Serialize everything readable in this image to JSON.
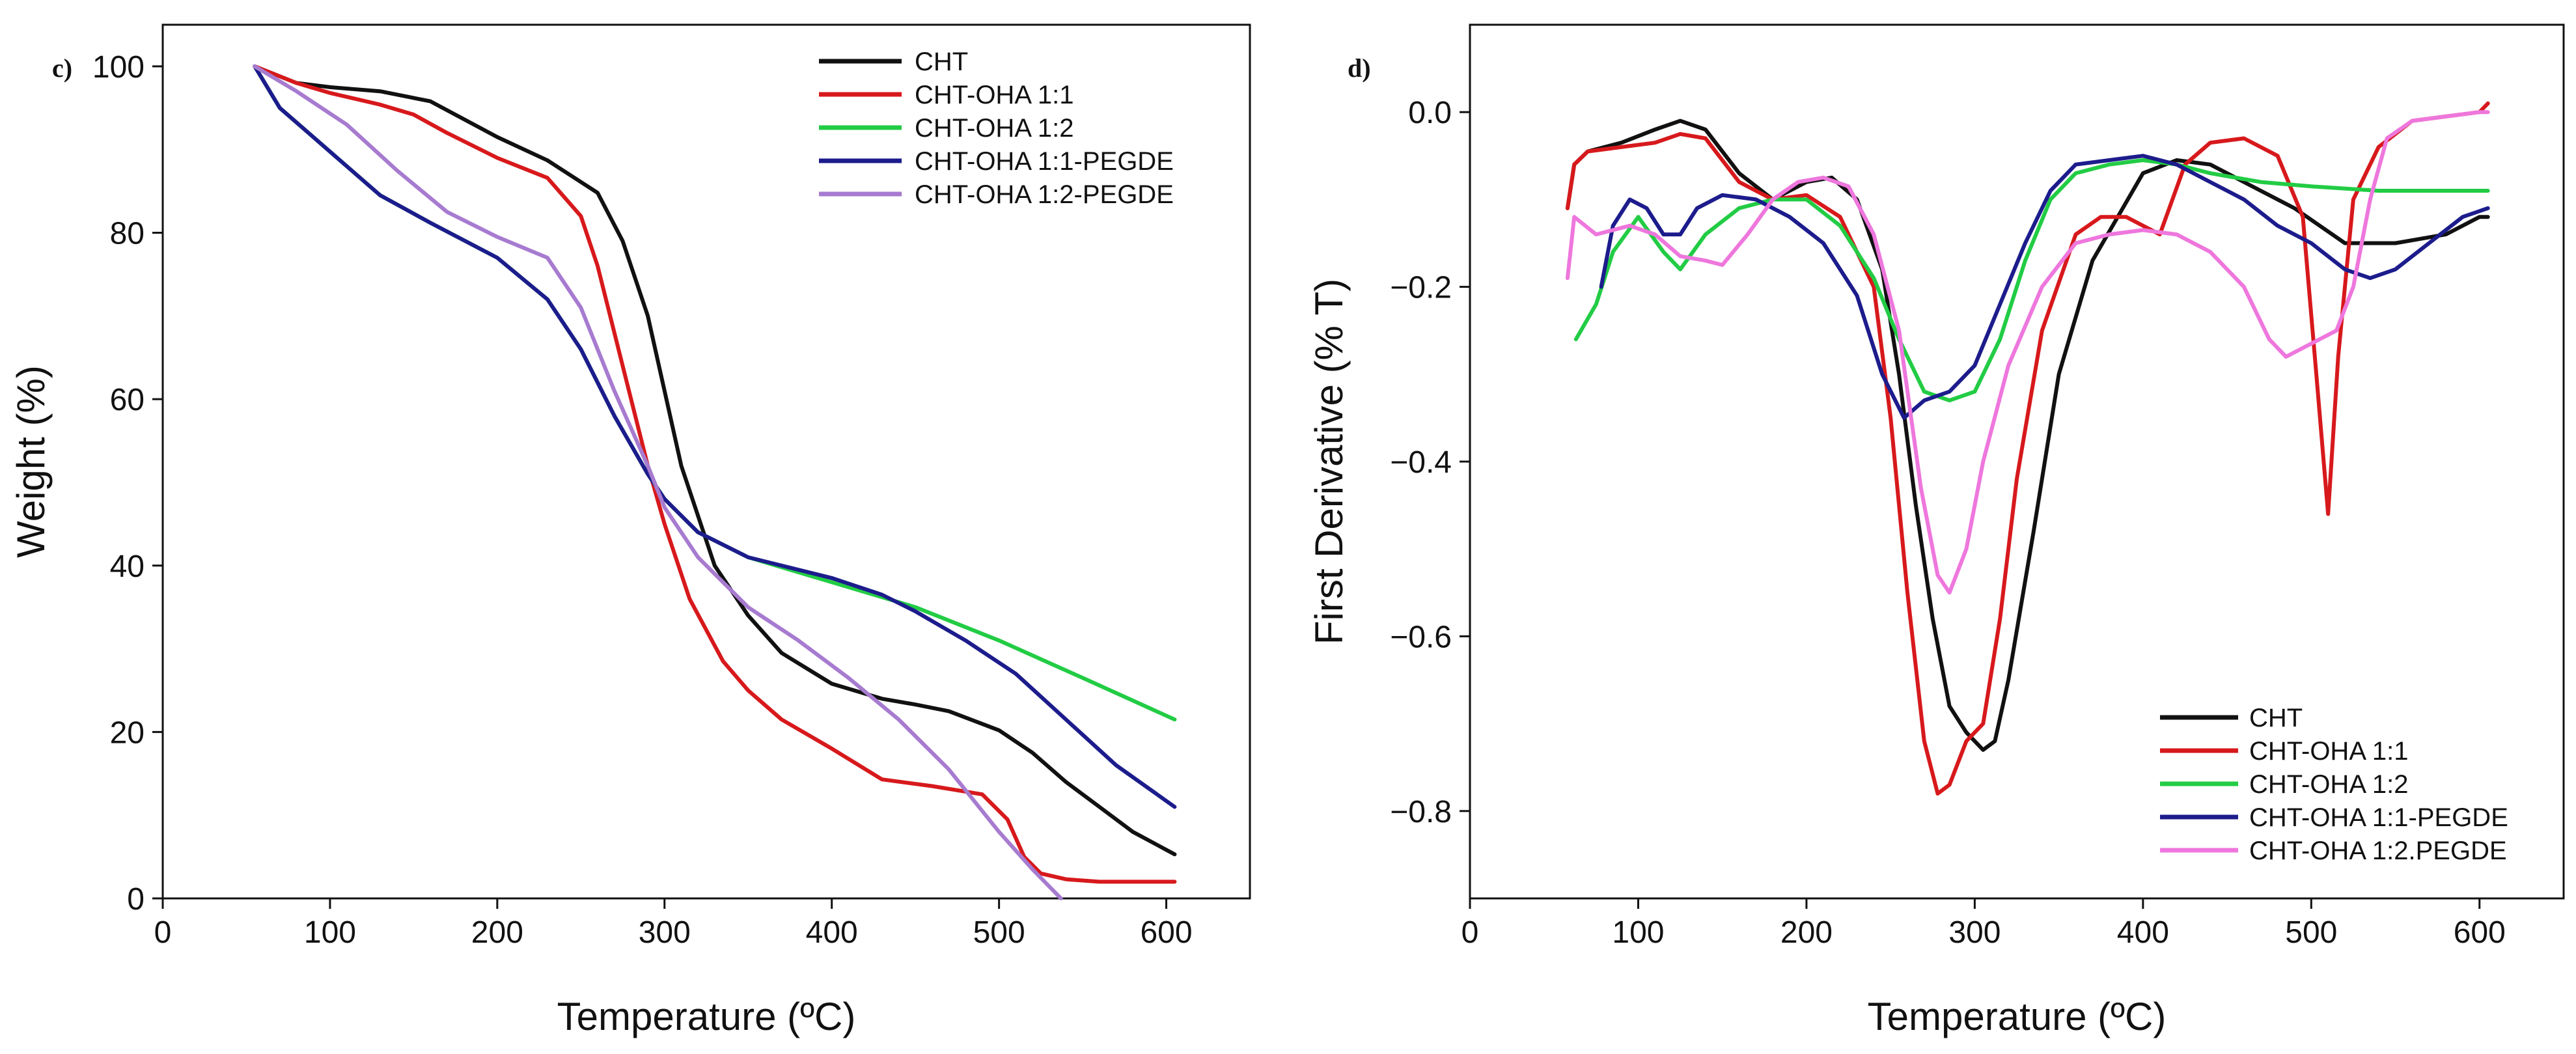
{
  "chart_data": [
    {
      "type": "line",
      "panel_label": "c)",
      "xlabel": "Temperature (ºC)",
      "ylabel": "Weight (%)",
      "xlim": [
        0,
        650
      ],
      "ylim": [
        0,
        105
      ],
      "xticks": [
        0,
        100,
        200,
        300,
        400,
        500,
        600
      ],
      "yticks": [
        0,
        20,
        40,
        60,
        80,
        100
      ],
      "xtick_labels": [
        "0",
        "100",
        "200",
        "300",
        "400",
        "500",
        "600"
      ],
      "ytick_labels": [
        "0",
        "20",
        "40",
        "60",
        "80",
        "100"
      ],
      "legend_position": "top-right",
      "series": [
        {
          "name": "CHT",
          "color": "#111111",
          "x": [
            55,
            80,
            100,
            130,
            160,
            200,
            230,
            260,
            275,
            290,
            310,
            330,
            350,
            370,
            400,
            430,
            450,
            470,
            500,
            520,
            540,
            560,
            580,
            605
          ],
          "y": [
            100,
            98,
            97.5,
            97,
            95.8,
            91.5,
            88.7,
            84.8,
            79,
            70,
            52,
            40,
            34,
            29.5,
            25.8,
            24,
            23.3,
            22.5,
            20.2,
            17.5,
            14,
            11,
            8,
            5.3
          ]
        },
        {
          "name": "CHT-OHA 1:1",
          "color": "#d7191c",
          "x": [
            55,
            80,
            100,
            130,
            150,
            170,
            200,
            230,
            250,
            260,
            275,
            290,
            300,
            315,
            335,
            350,
            370,
            400,
            430,
            460,
            490,
            505,
            515,
            525,
            540,
            560,
            605
          ],
          "y": [
            100,
            98,
            96.8,
            95.4,
            94.2,
            92,
            89,
            86.6,
            82,
            76,
            64,
            52,
            45,
            36,
            28.5,
            25,
            21.5,
            18,
            14.3,
            13.5,
            12.5,
            9.5,
            5,
            3,
            2.3,
            2,
            2
          ]
        },
        {
          "name": "CHT-OHA 1:2",
          "color": "#22cc44",
          "x": [
            55,
            70,
            90,
            110,
            130,
            160,
            200,
            230,
            250,
            270,
            290,
            300,
            320,
            350,
            400,
            430,
            450,
            500,
            550,
            605
          ],
          "y": [
            100,
            95,
            91.5,
            88,
            84.5,
            81.2,
            77,
            72,
            66,
            58,
            51,
            48,
            44,
            41,
            38,
            36.2,
            35,
            31,
            26.5,
            21.5
          ]
        },
        {
          "name": "CHT-OHA 1:1-PEGDE",
          "color": "#1c1c8c",
          "x": [
            55,
            70,
            90,
            110,
            130,
            160,
            200,
            230,
            250,
            270,
            290,
            300,
            320,
            350,
            400,
            430,
            450,
            480,
            510,
            540,
            570,
            605
          ],
          "y": [
            100,
            95,
            91.5,
            88,
            84.5,
            81.2,
            77,
            72,
            66,
            58,
            51,
            48,
            44,
            41,
            38.5,
            36.5,
            34.5,
            31,
            27,
            21.5,
            16,
            11
          ]
        },
        {
          "name": "CHT-OHA 1:2-PEGDE",
          "color": "#a77bd0",
          "x": [
            55,
            80,
            110,
            140,
            170,
            200,
            230,
            250,
            270,
            290,
            300,
            320,
            350,
            380,
            410,
            440,
            470,
            500,
            520,
            537
          ],
          "y": [
            100,
            97,
            93,
            87.5,
            82.5,
            79.5,
            77,
            71,
            61,
            52,
            47,
            41,
            35,
            31,
            26.5,
            21.5,
            15.5,
            8,
            3.5,
            0
          ]
        }
      ]
    },
    {
      "type": "line",
      "panel_label": "d)",
      "xlabel": "Temperature (ºC)",
      "ylabel": "First Derivative (% T)",
      "xlim": [
        0,
        650
      ],
      "ylim": [
        -0.9,
        0.1
      ],
      "xticks": [
        0,
        100,
        200,
        300,
        400,
        500,
        600
      ],
      "yticks": [
        0.0,
        -0.2,
        -0.4,
        -0.6,
        -0.8
      ],
      "xtick_labels": [
        "0",
        "100",
        "200",
        "300",
        "400",
        "500",
        "600"
      ],
      "ytick_labels": [
        "0.0",
        "−0.2",
        "−0.4",
        "−0.6",
        "−0.8"
      ],
      "legend_position": "bottom-right",
      "series": [
        {
          "name": "CHT",
          "color": "#111111",
          "x": [
            58,
            62,
            70,
            90,
            110,
            125,
            140,
            160,
            180,
            200,
            215,
            230,
            245,
            255,
            265,
            275,
            285,
            295,
            305,
            312,
            320,
            335,
            350,
            370,
            400,
            420,
            440,
            460,
            490,
            520,
            550,
            580,
            600,
            605
          ],
          "y": [
            -0.11,
            -0.06,
            -0.045,
            -0.035,
            -0.02,
            -0.01,
            -0.02,
            -0.07,
            -0.1,
            -0.08,
            -0.075,
            -0.1,
            -0.18,
            -0.3,
            -0.45,
            -0.58,
            -0.68,
            -0.71,
            -0.73,
            -0.72,
            -0.65,
            -0.48,
            -0.3,
            -0.17,
            -0.07,
            -0.055,
            -0.06,
            -0.08,
            -0.11,
            -0.15,
            -0.15,
            -0.14,
            -0.12,
            -0.12
          ]
        },
        {
          "name": "CHT-OHA 1:1",
          "color": "#d7191c",
          "x": [
            58,
            62,
            70,
            90,
            110,
            125,
            140,
            160,
            180,
            200,
            220,
            240,
            250,
            260,
            270,
            278,
            285,
            295,
            305,
            315,
            325,
            340,
            360,
            375,
            390,
            410,
            425,
            440,
            460,
            480,
            495,
            503,
            510,
            516,
            525,
            540,
            560,
            580,
            600,
            605
          ],
          "y": [
            -0.11,
            -0.06,
            -0.045,
            -0.04,
            -0.035,
            -0.025,
            -0.03,
            -0.08,
            -0.1,
            -0.095,
            -0.12,
            -0.2,
            -0.35,
            -0.55,
            -0.72,
            -0.78,
            -0.77,
            -0.72,
            -0.7,
            -0.58,
            -0.42,
            -0.25,
            -0.14,
            -0.12,
            -0.12,
            -0.14,
            -0.06,
            -0.035,
            -0.03,
            -0.05,
            -0.12,
            -0.3,
            -0.46,
            -0.28,
            -0.1,
            -0.04,
            -0.01,
            -0.005,
            0.0,
            0.01
          ]
        },
        {
          "name": "CHT-OHA 1:2",
          "color": "#22cc44",
          "x": [
            63,
            75,
            85,
            100,
            115,
            125,
            140,
            160,
            180,
            200,
            220,
            240,
            255,
            270,
            285,
            300,
            315,
            330,
            345,
            360,
            380,
            400,
            420,
            440,
            470,
            500,
            540,
            580,
            605
          ],
          "y": [
            -0.26,
            -0.22,
            -0.16,
            -0.12,
            -0.16,
            -0.18,
            -0.14,
            -0.11,
            -0.1,
            -0.1,
            -0.13,
            -0.19,
            -0.26,
            -0.32,
            -0.33,
            -0.32,
            -0.26,
            -0.17,
            -0.1,
            -0.07,
            -0.06,
            -0.055,
            -0.06,
            -0.07,
            -0.08,
            -0.085,
            -0.09,
            -0.09,
            -0.09
          ]
        },
        {
          "name": "CHT-OHA 1:1-PEGDE",
          "color": "#1c1c8c",
          "x": [
            78,
            85,
            95,
            105,
            115,
            125,
            135,
            150,
            170,
            190,
            210,
            230,
            245,
            258,
            270,
            285,
            300,
            315,
            330,
            345,
            360,
            380,
            400,
            420,
            440,
            460,
            480,
            500,
            520,
            535,
            550,
            570,
            590,
            605
          ],
          "y": [
            -0.2,
            -0.13,
            -0.1,
            -0.11,
            -0.14,
            -0.14,
            -0.11,
            -0.095,
            -0.1,
            -0.12,
            -0.15,
            -0.21,
            -0.3,
            -0.35,
            -0.33,
            -0.32,
            -0.29,
            -0.22,
            -0.15,
            -0.09,
            -0.06,
            -0.055,
            -0.05,
            -0.06,
            -0.08,
            -0.1,
            -0.13,
            -0.15,
            -0.18,
            -0.19,
            -0.18,
            -0.15,
            -0.12,
            -0.11
          ]
        },
        {
          "name": "CHT-OHA 1:2.PEGDE",
          "color": "#ee77dd",
          "x": [
            58,
            62,
            75,
            95,
            110,
            125,
            140,
            150,
            165,
            180,
            195,
            210,
            225,
            240,
            255,
            268,
            278,
            285,
            295,
            305,
            320,
            340,
            360,
            380,
            400,
            420,
            440,
            460,
            475,
            485,
            495,
            505,
            515,
            525,
            535,
            545,
            560,
            580,
            600,
            605
          ],
          "y": [
            -0.19,
            -0.12,
            -0.14,
            -0.13,
            -0.14,
            -0.165,
            -0.17,
            -0.175,
            -0.14,
            -0.1,
            -0.08,
            -0.075,
            -0.085,
            -0.14,
            -0.25,
            -0.43,
            -0.53,
            -0.55,
            -0.5,
            -0.4,
            -0.29,
            -0.2,
            -0.15,
            -0.14,
            -0.135,
            -0.14,
            -0.16,
            -0.2,
            -0.26,
            -0.28,
            -0.27,
            -0.26,
            -0.25,
            -0.2,
            -0.1,
            -0.03,
            -0.01,
            -0.005,
            0.0,
            0.0
          ]
        }
      ]
    }
  ]
}
